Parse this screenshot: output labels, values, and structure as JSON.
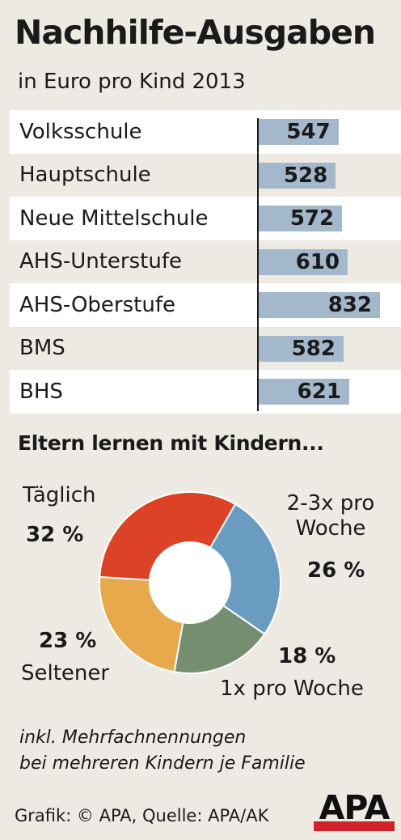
{
  "title": "Nachhilfe-Ausgaben",
  "subtitle": "in Euro pro Kind 2013",
  "chart_data": [
    {
      "type": "bar",
      "orientation": "horizontal",
      "categories": [
        "Volksschule",
        "Hauptschule",
        "Neue Mittelschule",
        "AHS-Unterstufe",
        "AHS-Oberstufe",
        "BMS",
        "BHS"
      ],
      "values": [
        547,
        528,
        572,
        610,
        832,
        582,
        621
      ],
      "value_labels": [
        "547",
        "528",
        "572",
        "610",
        "832",
        "582",
        "621"
      ],
      "bar_color": "#a3b8cb"
    },
    {
      "type": "pie",
      "variant": "donut",
      "title": "Eltern lernen mit Kindern...",
      "slices": [
        {
          "name": "2-3x pro Woche",
          "value": 26,
          "pct_label": "26 %",
          "color": "#6a9cc1"
        },
        {
          "name": "1x pro Woche",
          "value": 18,
          "pct_label": "18 %",
          "color": "#758e70"
        },
        {
          "name": "Seltener",
          "value": 23,
          "pct_label": "23 %",
          "color": "#e7a94c"
        },
        {
          "name": "Täglich",
          "value": 32,
          "pct_label": "32 %",
          "color": "#dc4225"
        }
      ]
    }
  ],
  "footnote": {
    "line1": "inkl. Mehrfachnennungen",
    "line2": "bei mehreren Kindern je Familie"
  },
  "source": "Grafik: © APA, Quelle: APA/AK",
  "logo": "APA"
}
